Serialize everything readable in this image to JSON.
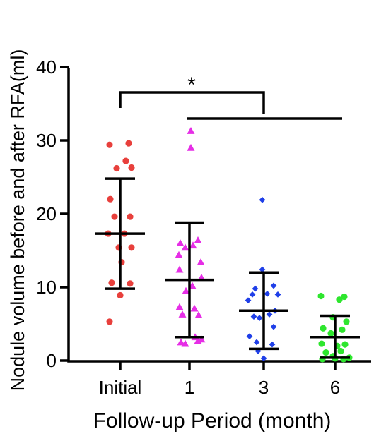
{
  "chart_data": {
    "type": "scatter",
    "ylabel": "Nodule volume before and after RFA(ml)",
    "xlabel": "Follow-up Period (month)",
    "categories": [
      "Initial",
      "1",
      "3",
      "6"
    ],
    "ylim": [
      0,
      40
    ],
    "yticks": [
      0,
      10,
      20,
      30,
      40
    ],
    "grid": false,
    "significance_label": "*",
    "groups": [
      {
        "category": "Initial",
        "color": "#e8403c",
        "marker": "circle",
        "mean": 17.3,
        "sd_upper": 24.8,
        "sd_lower": 9.8,
        "points": [
          {
            "o": -0.15,
            "v": 29.4
          },
          {
            "o": 0.12,
            "v": 29.6
          },
          {
            "o": 0.08,
            "v": 27.2
          },
          {
            "o": -0.05,
            "v": 26.2
          },
          {
            "o": 0.16,
            "v": 26.3
          },
          {
            "o": -0.14,
            "v": 22.0
          },
          {
            "o": -0.08,
            "v": 19.6
          },
          {
            "o": 0.14,
            "v": 19.6
          },
          {
            "o": -0.17,
            "v": 17.3
          },
          {
            "o": 0.06,
            "v": 17.3
          },
          {
            "o": 0.16,
            "v": 15.4
          },
          {
            "o": -0.02,
            "v": 15.4
          },
          {
            "o": 0.02,
            "v": 13.4
          },
          {
            "o": 0.14,
            "v": 10.5
          },
          {
            "o": -0.12,
            "v": 10.6
          },
          {
            "o": 0.0,
            "v": 8.9
          },
          {
            "o": -0.15,
            "v": 5.3
          }
        ]
      },
      {
        "category": "1",
        "color": "#e62ee6",
        "marker": "triangle",
        "mean": 11.0,
        "sd_upper": 18.8,
        "sd_lower": 3.2,
        "points": [
          {
            "o": 0.02,
            "v": 31.3
          },
          {
            "o": 0.02,
            "v": 29.0
          },
          {
            "o": 0.12,
            "v": 16.4
          },
          {
            "o": -0.13,
            "v": 16.0
          },
          {
            "o": 0.05,
            "v": 15.7
          },
          {
            "o": -0.06,
            "v": 15.4
          },
          {
            "o": -0.15,
            "v": 14.4
          },
          {
            "o": 0.16,
            "v": 13.4
          },
          {
            "o": -0.14,
            "v": 12.4
          },
          {
            "o": 0.17,
            "v": 11.3
          },
          {
            "o": 0.04,
            "v": 10.2
          },
          {
            "o": -0.05,
            "v": 9.5
          },
          {
            "o": -0.14,
            "v": 7.3
          },
          {
            "o": 0.07,
            "v": 7.1
          },
          {
            "o": -0.1,
            "v": 6.3
          },
          {
            "o": 0.13,
            "v": 6.2
          },
          {
            "o": 0.08,
            "v": 3.2
          },
          {
            "o": -0.06,
            "v": 2.3
          },
          {
            "o": 0.12,
            "v": 2.7
          },
          {
            "o": 0.17,
            "v": 2.9
          },
          {
            "o": -0.12,
            "v": 2.5
          }
        ]
      },
      {
        "category": "3",
        "color": "#1f3fe8",
        "marker": "diamond",
        "mean": 6.8,
        "sd_upper": 12.0,
        "sd_lower": 1.6,
        "points": [
          {
            "o": -0.02,
            "v": 21.9
          },
          {
            "o": -0.02,
            "v": 12.4
          },
          {
            "o": 0.14,
            "v": 10.2
          },
          {
            "o": -0.12,
            "v": 9.8
          },
          {
            "o": 0.05,
            "v": 9.1
          },
          {
            "o": -0.16,
            "v": 9.0
          },
          {
            "o": 0.2,
            "v": 9.0
          },
          {
            "o": -0.22,
            "v": 8.2
          },
          {
            "o": 0.08,
            "v": 6.3
          },
          {
            "o": 0.16,
            "v": 6.8
          },
          {
            "o": -0.14,
            "v": 6.0
          },
          {
            "o": -0.06,
            "v": 5.8
          },
          {
            "o": 0.14,
            "v": 4.6
          },
          {
            "o": -0.2,
            "v": 3.3
          },
          {
            "o": -0.1,
            "v": 2.5
          },
          {
            "o": 0.12,
            "v": 2.2
          },
          {
            "o": -0.08,
            "v": 1.3
          },
          {
            "o": 0.0,
            "v": 0.3
          }
        ]
      },
      {
        "category": "6",
        "color": "#2ee62e",
        "marker": "circle",
        "mean": 3.2,
        "sd_upper": 6.1,
        "sd_lower": 0.4,
        "points": [
          {
            "o": -0.2,
            "v": 8.8
          },
          {
            "o": 0.13,
            "v": 8.7
          },
          {
            "o": 0.06,
            "v": 8.3
          },
          {
            "o": -0.03,
            "v": 5.9
          },
          {
            "o": 0.16,
            "v": 5.3
          },
          {
            "o": -0.17,
            "v": 4.4
          },
          {
            "o": 0.1,
            "v": 4.2
          },
          {
            "o": -0.06,
            "v": 3.7
          },
          {
            "o": -0.19,
            "v": 2.3
          },
          {
            "o": 0.14,
            "v": 2.2
          },
          {
            "o": 0.03,
            "v": 2.0
          },
          {
            "o": -0.13,
            "v": 1.1
          },
          {
            "o": 0.08,
            "v": 1.3
          },
          {
            "o": -0.03,
            "v": 0.6
          },
          {
            "o": 0.2,
            "v": 0.4
          },
          {
            "o": -0.18,
            "v": 0.2
          },
          {
            "o": 0.12,
            "v": 0.2
          },
          {
            "o": 0.0,
            "v": 0.3
          }
        ]
      }
    ]
  }
}
